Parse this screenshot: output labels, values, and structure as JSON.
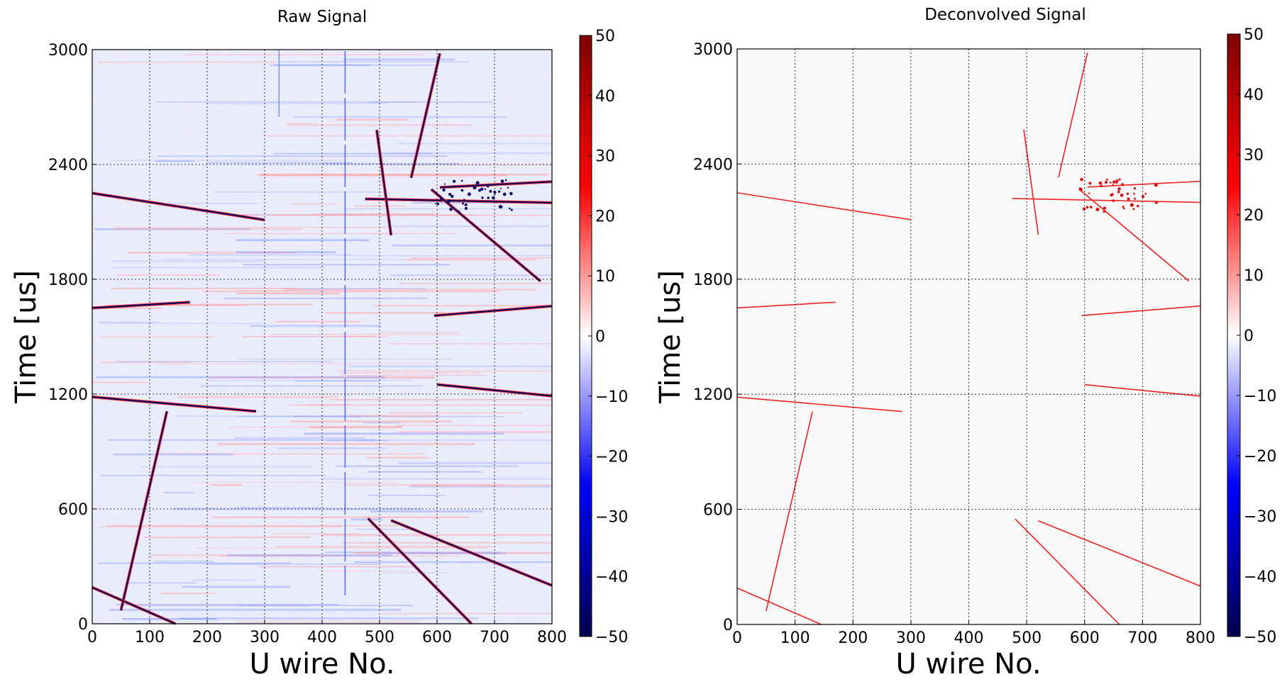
{
  "chart_data": [
    {
      "type": "heatmap",
      "title": "Raw Signal",
      "xlabel": "U wire No.",
      "ylabel": "Time [us]",
      "xlim": [
        0,
        800
      ],
      "ylim": [
        0,
        3000
      ],
      "xticks": [
        0,
        100,
        200,
        300,
        400,
        500,
        600,
        700,
        800
      ],
      "yticks": [
        0,
        600,
        1200,
        1800,
        2400,
        3000
      ],
      "grid": true,
      "colorbar": {
        "min": -50,
        "max": 50,
        "ticks": [
          50,
          40,
          30,
          20,
          10,
          0,
          -10,
          -20,
          -30,
          -40,
          -50
        ],
        "colormap": "seismic"
      },
      "background": "noise",
      "tracks": [
        {
          "x": [
            0,
            300
          ],
          "y": [
            2250,
            2110
          ]
        },
        {
          "x": [
            0,
            170
          ],
          "y": [
            1650,
            1680
          ]
        },
        {
          "x": [
            0,
            285
          ],
          "y": [
            1185,
            1110
          ]
        },
        {
          "x": [
            0,
            145
          ],
          "y": [
            190,
            0
          ]
        },
        {
          "x": [
            50,
            130
          ],
          "y": [
            70,
            1110
          ]
        },
        {
          "x": [
            475,
            800
          ],
          "y": [
            2220,
            2200
          ]
        },
        {
          "x": [
            590,
            780
          ],
          "y": [
            2270,
            1790
          ]
        },
        {
          "x": [
            555,
            605
          ],
          "y": [
            2330,
            2980
          ]
        },
        {
          "x": [
            495,
            520
          ],
          "y": [
            2580,
            2030
          ]
        },
        {
          "x": [
            595,
            800
          ],
          "y": [
            1610,
            1660
          ]
        },
        {
          "x": [
            600,
            800
          ],
          "y": [
            1250,
            1190
          ]
        },
        {
          "x": [
            480,
            660
          ],
          "y": [
            550,
            0
          ]
        },
        {
          "x": [
            520,
            800
          ],
          "y": [
            540,
            200
          ]
        },
        {
          "x": [
            605,
            800
          ],
          "y": [
            2280,
            2310
          ]
        }
      ]
    },
    {
      "type": "heatmap",
      "title": "Deconvolved Signal",
      "xlabel": "U wire No.",
      "ylabel": "Time [us]",
      "xlim": [
        0,
        800
      ],
      "ylim": [
        0,
        3000
      ],
      "xticks": [
        0,
        100,
        200,
        300,
        400,
        500,
        600,
        700,
        800
      ],
      "yticks": [
        0,
        600,
        1200,
        1800,
        2400,
        3000
      ],
      "grid": true,
      "colorbar": {
        "min": -50,
        "max": 50,
        "ticks": [
          50,
          40,
          30,
          20,
          10,
          0,
          -10,
          -20,
          -30,
          -40,
          -50
        ],
        "colormap": "seismic"
      },
      "background": "clean",
      "tracks": [
        {
          "x": [
            0,
            300
          ],
          "y": [
            2250,
            2110
          ]
        },
        {
          "x": [
            0,
            170
          ],
          "y": [
            1650,
            1680
          ]
        },
        {
          "x": [
            0,
            285
          ],
          "y": [
            1185,
            1110
          ]
        },
        {
          "x": [
            0,
            145
          ],
          "y": [
            190,
            0
          ]
        },
        {
          "x": [
            50,
            130
          ],
          "y": [
            70,
            1110
          ]
        },
        {
          "x": [
            475,
            800
          ],
          "y": [
            2220,
            2200
          ]
        },
        {
          "x": [
            590,
            780
          ],
          "y": [
            2270,
            1790
          ]
        },
        {
          "x": [
            555,
            605
          ],
          "y": [
            2330,
            2980
          ]
        },
        {
          "x": [
            495,
            520
          ],
          "y": [
            2580,
            2030
          ]
        },
        {
          "x": [
            595,
            800
          ],
          "y": [
            1610,
            1660
          ]
        },
        {
          "x": [
            600,
            800
          ],
          "y": [
            1250,
            1190
          ]
        },
        {
          "x": [
            480,
            660
          ],
          "y": [
            550,
            0
          ]
        },
        {
          "x": [
            520,
            800
          ],
          "y": [
            540,
            200
          ]
        },
        {
          "x": [
            605,
            800
          ],
          "y": [
            2280,
            2310
          ]
        }
      ]
    }
  ]
}
